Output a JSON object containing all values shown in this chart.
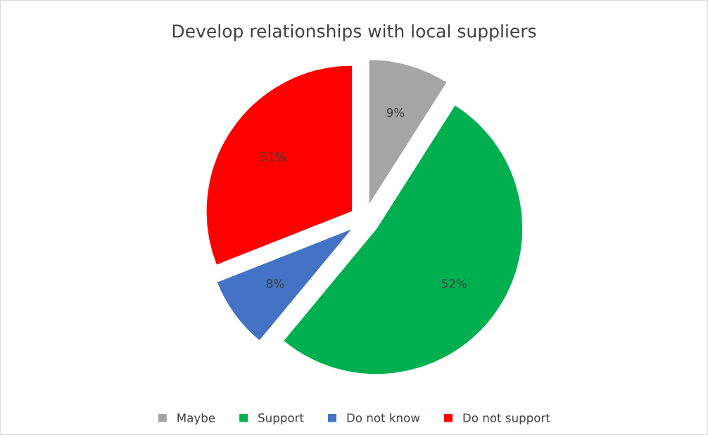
{
  "chart_data": {
    "type": "pie",
    "title": "Develop relationships with local suppliers",
    "categories": [
      "Maybe",
      "Support",
      "Do not know",
      "Do not support"
    ],
    "values": [
      9,
      52,
      8,
      31
    ],
    "colors": [
      "#a5a5a5",
      "#00b050",
      "#4472c4",
      "#ff0000"
    ],
    "value_labels": [
      "9%",
      "52%",
      "8%",
      "31%"
    ],
    "legend": "bottom"
  }
}
